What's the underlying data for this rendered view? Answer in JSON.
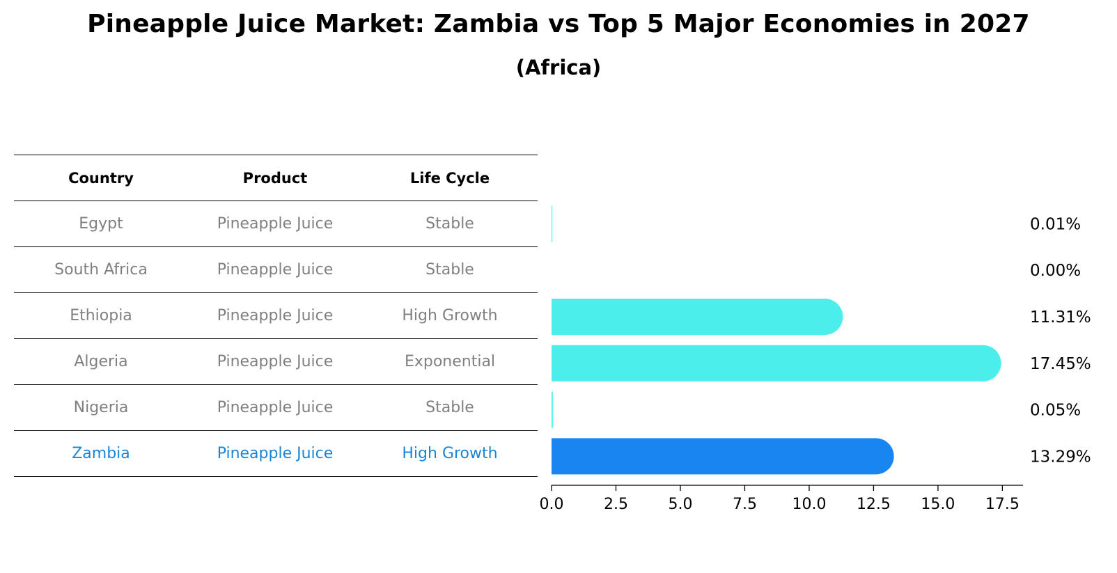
{
  "chart_data": {
    "type": "bar",
    "orientation": "horizontal",
    "title": "Pineapple Juice Market: Zambia vs Top 5 Major Economies in 2027",
    "subtitle": "(Africa)",
    "table": {
      "headers": [
        "Country",
        "Product",
        "Life Cycle"
      ],
      "rows": [
        {
          "country": "Egypt",
          "product": "Pineapple Juice",
          "life_cycle": "Stable",
          "highlight": false
        },
        {
          "country": "South Africa",
          "product": "Pineapple Juice",
          "life_cycle": "Stable",
          "highlight": false
        },
        {
          "country": "Ethiopia",
          "product": "Pineapple Juice",
          "life_cycle": "High Growth",
          "highlight": false
        },
        {
          "country": "Algeria",
          "product": "Pineapple Juice",
          "life_cycle": "Exponential",
          "highlight": false
        },
        {
          "country": "Nigeria",
          "product": "Pineapple Juice",
          "life_cycle": "Stable",
          "highlight": false
        },
        {
          "country": "Zambia",
          "product": "Pineapple Juice",
          "life_cycle": "High Growth",
          "highlight": true
        }
      ]
    },
    "categories": [
      "Egypt",
      "South Africa",
      "Ethiopia",
      "Algeria",
      "Nigeria",
      "Zambia"
    ],
    "values": [
      0.01,
      0.0,
      11.31,
      17.45,
      0.05,
      13.29
    ],
    "value_labels": [
      "0.01%",
      "0.00%",
      "11.31%",
      "17.45%",
      "0.05%",
      "13.29%"
    ],
    "xlim": [
      0,
      18.3
    ],
    "xticks": [
      0.0,
      2.5,
      5.0,
      7.5,
      10.0,
      12.5,
      15.0,
      17.5
    ],
    "xtick_labels": [
      "0.0",
      "2.5",
      "5.0",
      "7.5",
      "10.0",
      "12.5",
      "15.0",
      "17.5"
    ],
    "colors": {
      "default": "#4ceeeb",
      "highlight": "#1985f0",
      "highlight_text": "#1a85d6",
      "muted_text": "#808080"
    },
    "grid": false,
    "legend": "none"
  }
}
